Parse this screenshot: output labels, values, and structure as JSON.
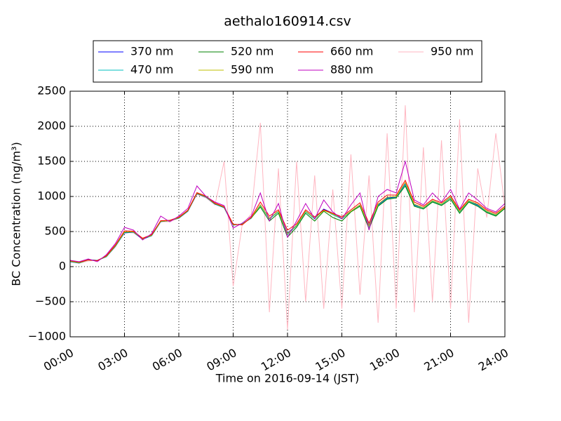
{
  "chart_data": {
    "type": "line",
    "title": "aethalo160914.csv",
    "x_label": "Time on 2016-09-14 (JST)",
    "y_label": "BC Concentration (ng/m³)",
    "x": [
      0,
      0.5,
      1,
      1.5,
      2,
      2.5,
      3,
      3.5,
      4,
      4.5,
      5,
      5.5,
      6,
      6.5,
      7,
      7.5,
      8,
      8.5,
      9,
      9.5,
      10,
      10.5,
      11,
      11.5,
      12,
      12.5,
      13,
      13.5,
      14,
      14.5,
      15,
      15.5,
      16,
      16.5,
      17,
      17.5,
      18,
      18.5,
      19,
      19.5,
      20,
      20.5,
      21,
      21.5,
      22,
      22.5,
      23,
      23.5,
      24
    ],
    "xlim": [
      0,
      24
    ],
    "xticks": [
      {
        "value": 0,
        "label": "00:00"
      },
      {
        "value": 3,
        "label": "03:00"
      },
      {
        "value": 6,
        "label": "06:00"
      },
      {
        "value": 9,
        "label": "09:00"
      },
      {
        "value": 12,
        "label": "12:00"
      },
      {
        "value": 15,
        "label": "15:00"
      },
      {
        "value": 18,
        "label": "18:00"
      },
      {
        "value": 21,
        "label": "21:00"
      },
      {
        "value": 24,
        "label": "24:00"
      }
    ],
    "ylim": [
      -1000,
      2500
    ],
    "yticks": [
      {
        "value": -1000,
        "label": "−1000"
      },
      {
        "value": -500,
        "label": "−500"
      },
      0,
      500,
      1000,
      1500,
      2000,
      2500
    ],
    "grid": true,
    "series": [
      {
        "name": "370 nm",
        "color": "#0000ff",
        "values": [
          70,
          50,
          100,
          90,
          140,
          290,
          480,
          490,
          390,
          440,
          640,
          660,
          690,
          790,
          1040,
          990,
          890,
          840,
          590,
          610,
          690,
          880,
          690,
          790,
          480,
          590,
          790,
          690,
          820,
          760,
          690,
          790,
          880,
          590,
          880,
          980,
          990,
          1180,
          880,
          840,
          940,
          890,
          990,
          790,
          940,
          880,
          790,
          740,
          840
        ]
      },
      {
        "name": "470 nm",
        "color": "#00bfbf",
        "values": [
          72,
          52,
          98,
          88,
          142,
          292,
          485,
          492,
          392,
          442,
          642,
          658,
          692,
          792,
          1042,
          992,
          892,
          842,
          592,
          608,
          692,
          870,
          680,
          780,
          460,
          580,
          780,
          680,
          810,
          740,
          680,
          785,
          870,
          570,
          870,
          970,
          985,
          1170,
          870,
          830,
          930,
          880,
          980,
          780,
          930,
          870,
          780,
          730,
          835
        ]
      },
      {
        "name": "520 nm",
        "color": "#008000",
        "values": [
          75,
          55,
          95,
          85,
          145,
          295,
          490,
          495,
          395,
          445,
          645,
          655,
          695,
          795,
          1045,
          995,
          895,
          845,
          595,
          605,
          695,
          850,
          650,
          760,
          420,
          560,
          760,
          650,
          790,
          700,
          650,
          780,
          860,
          540,
          860,
          960,
          980,
          1150,
          860,
          820,
          920,
          870,
          960,
          760,
          920,
          860,
          770,
          720,
          830
        ]
      },
      {
        "name": "590 nm",
        "color": "#bfbf00",
        "values": [
          78,
          58,
          96,
          86,
          148,
          300,
          495,
          498,
          398,
          448,
          648,
          657,
          698,
          798,
          1048,
          998,
          898,
          848,
          598,
          602,
          698,
          880,
          690,
          790,
          470,
          590,
          790,
          690,
          800,
          750,
          690,
          790,
          880,
          580,
          890,
          990,
          1000,
          1200,
          890,
          840,
          940,
          890,
          990,
          790,
          940,
          890,
          790,
          740,
          845
        ]
      },
      {
        "name": "660 nm",
        "color": "#ff0000",
        "values": [
          85,
          65,
          95,
          85,
          155,
          310,
          510,
          505,
          405,
          455,
          655,
          660,
          705,
          805,
          1055,
          1005,
          905,
          855,
          605,
          595,
          705,
          920,
          720,
          810,
          520,
          610,
          810,
          710,
          810,
          760,
          710,
          810,
          910,
          620,
          920,
          1020,
          1020,
          1230,
          920,
          860,
          960,
          910,
          1010,
          810,
          960,
          910,
          810,
          760,
          860
        ]
      },
      {
        "name": "880 nm",
        "color": "#bf00bf",
        "values": [
          90,
          70,
          110,
          70,
          170,
          330,
          560,
          520,
          380,
          470,
          720,
          640,
          720,
          830,
          1150,
          1000,
          920,
          870,
          550,
          620,
          720,
          1050,
          650,
          900,
          420,
          650,
          900,
          680,
          950,
          780,
          680,
          880,
          1050,
          520,
          1000,
          1100,
          1050,
          1500,
          950,
          880,
          1050,
          920,
          1100,
          820,
          1050,
          950,
          830,
          780,
          900
        ]
      },
      {
        "name": "950 nm",
        "color": "#ffb6c1",
        "values": [
          70,
          50,
          80,
          90,
          140,
          280,
          490,
          480,
          390,
          440,
          640,
          640,
          690,
          790,
          1030,
          980,
          880,
          1500,
          -280,
          600,
          750,
          2050,
          -650,
          1400,
          -900,
          1500,
          -500,
          1300,
          -600,
          1100,
          -600,
          1600,
          -400,
          1300,
          -800,
          1900,
          -600,
          2300,
          -650,
          1700,
          -500,
          1800,
          -600,
          2100,
          -800,
          1400,
          700,
          1900,
          850
        ]
      }
    ]
  }
}
